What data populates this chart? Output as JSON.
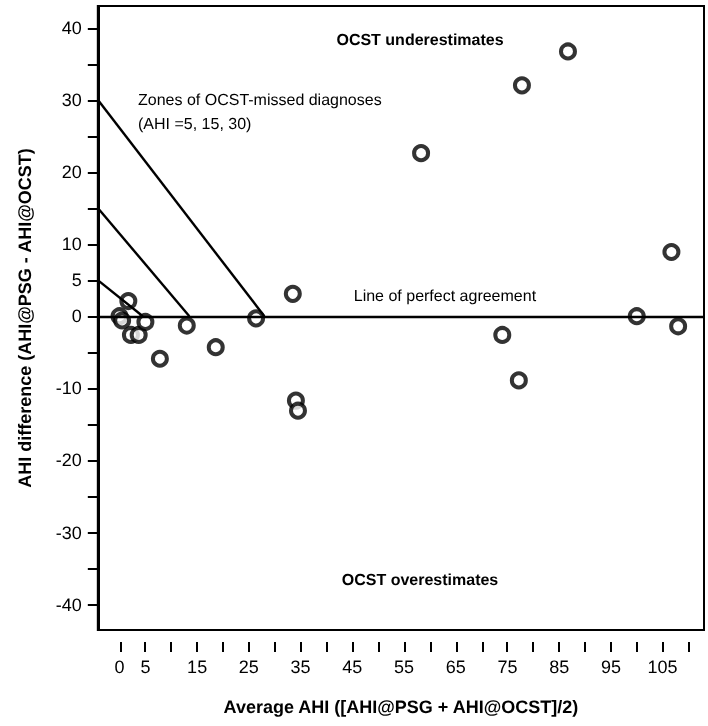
{
  "chart_data": {
    "type": "scatter",
    "xlabel": "Average AHI ([AHI@PSG + AHI@OCST]/2)",
    "ylabel": "AHI difference (AHI@PSG - AHI@OCST)",
    "xlim": [
      -4.2,
      113
    ],
    "ylim": [
      -43.5,
      43
    ],
    "xticks": [
      0,
      5,
      {
        "value": 10,
        "label": null
      },
      15,
      {
        "value": 20,
        "label": null
      },
      25,
      {
        "value": 30,
        "label": null
      },
      35,
      {
        "value": 40,
        "label": null
      },
      45,
      {
        "value": 50,
        "label": null
      },
      55,
      {
        "value": 60,
        "label": null
      },
      65,
      {
        "value": 70,
        "label": null
      },
      75,
      {
        "value": 80,
        "label": null
      },
      85,
      {
        "value": 90,
        "label": null
      },
      95,
      {
        "value": 100,
        "label": null
      },
      105,
      {
        "value": 110,
        "label": null
      }
    ],
    "yticks": [
      -40,
      {
        "value": -35,
        "label": null
      },
      -30,
      {
        "value": -25,
        "label": null
      },
      -20,
      {
        "value": -15,
        "label": null
      },
      -10,
      {
        "value": -5,
        "label": null
      },
      0,
      5,
      10,
      {
        "value": 15,
        "label": null
      },
      20,
      {
        "value": 25,
        "label": null
      },
      30,
      {
        "value": 35,
        "label": null
      },
      40
    ],
    "grid": false,
    "marker": "circle",
    "series": [
      {
        "color": "#000000",
        "x": [
          0,
          0.5,
          1.7,
          2.2,
          3.7,
          5,
          7.8,
          13,
          18.6,
          26.4,
          33.5,
          34.1,
          34.5,
          58.3,
          74,
          77.2,
          77.8,
          86.7,
          100,
          106.7,
          108
        ],
        "values": [
          0,
          -0.6,
          2.1,
          -2.6,
          -2.6,
          -0.8,
          -5.9,
          -1.3,
          -4.3,
          -0.3,
          3.1,
          -11.7,
          -13.1,
          22.6,
          -2.6,
          -8.9,
          32,
          36.7,
          0,
          8.9,
          -1.4
        ]
      },
      {
        "type": "line",
        "color": "#000000",
        "marker": "none",
        "x": [
          -4.2,
          28
        ],
        "values": [
          30,
          0
        ]
      },
      {
        "type": "line",
        "color": "#000000",
        "marker": "none",
        "x": [
          -4.2,
          13.5
        ],
        "values": [
          15,
          0
        ]
      },
      {
        "type": "line",
        "color": "#000000",
        "marker": "none",
        "x": [
          -4.2,
          4.5
        ],
        "values": [
          5,
          0
        ]
      }
    ],
    "ref_lines": [
      {
        "axis": "y",
        "value": 0,
        "label": "Line of perfect agreement",
        "color": "#000000"
      }
    ],
    "annotations": [
      "OCST underestimates",
      "OCST overestimates",
      "Zones of OCST-missed diagnoses\n(AHI =5, 15, 30)"
    ]
  }
}
